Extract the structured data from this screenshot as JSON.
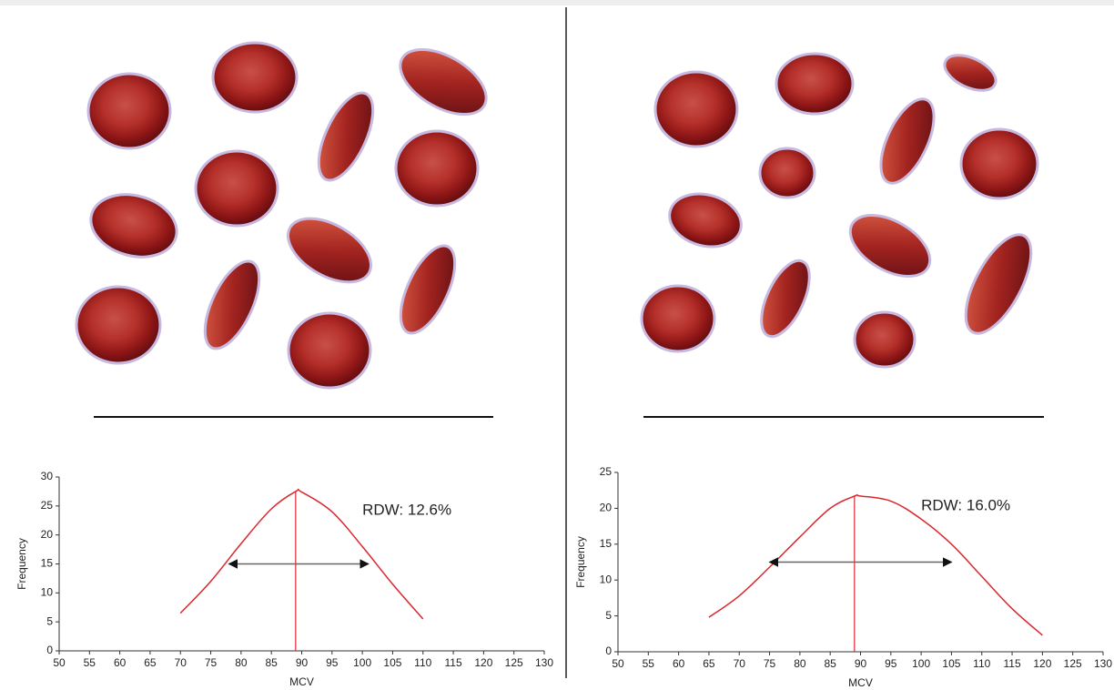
{
  "chart_data": [
    {
      "type": "line",
      "x": [
        70,
        75,
        80,
        85,
        89,
        90,
        95,
        100,
        105,
        110
      ],
      "values": [
        6.5,
        12,
        18.5,
        24.5,
        27.5,
        27.4,
        24,
        18,
        11.5,
        5.5
      ],
      "color": "#d9272e",
      "xlim": [
        50,
        130
      ],
      "xticks": [
        50,
        55,
        60,
        65,
        70,
        75,
        80,
        85,
        90,
        95,
        100,
        105,
        110,
        115,
        120,
        125,
        130
      ],
      "ylim": [
        0,
        30
      ],
      "yticks": [
        0,
        5,
        10,
        15,
        20,
        25,
        30
      ],
      "xlabel": "MCV",
      "ylabel": "Frequency",
      "annotation": "RDW: 12.6%",
      "mean_line": 89,
      "width_arrow": {
        "y": 15,
        "x": [
          78,
          101
        ]
      }
    },
    {
      "type": "line",
      "x": [
        65,
        70,
        75,
        80,
        85,
        89,
        90,
        95,
        100,
        105,
        110,
        115,
        120
      ],
      "values": [
        4.8,
        7.8,
        11.8,
        16,
        20,
        21.7,
        21.7,
        21,
        18.5,
        15,
        10.5,
        6,
        2.3
      ],
      "color": "#d9272e",
      "xlim": [
        50,
        130
      ],
      "xticks": [
        50,
        55,
        60,
        65,
        70,
        75,
        80,
        85,
        90,
        95,
        100,
        105,
        110,
        115,
        120,
        125,
        130
      ],
      "ylim": [
        0,
        25
      ],
      "yticks": [
        0,
        5,
        10,
        15,
        20,
        25
      ],
      "xlabel": "MCV",
      "ylabel": "Frequency",
      "annotation": "RDW: 16.0%",
      "mean_line": 89,
      "width_arrow": {
        "y": 12.5,
        "x": [
          75,
          105
        ]
      }
    }
  ]
}
